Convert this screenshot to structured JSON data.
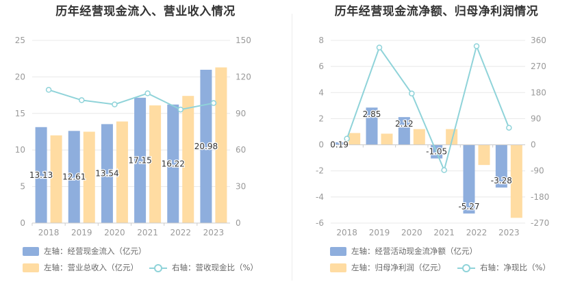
{
  "colors": {
    "blue": "#8eaedd",
    "orange": "#ffdca2",
    "teal": "#8fd3d9",
    "grid": "#e8e8e8",
    "axis": "#999999"
  },
  "chart_data": [
    {
      "type": "bar",
      "title": "历年经营现金流入、营业收入情况",
      "categories": [
        "2018",
        "2019",
        "2020",
        "2021",
        "2022",
        "2023"
      ],
      "left_axis": {
        "min": 0,
        "max": 25,
        "ticks": [
          "0",
          "5",
          "10",
          "15",
          "20",
          "25"
        ]
      },
      "right_axis": {
        "min": 0,
        "max": 150,
        "ticks": [
          "0",
          "30",
          "60",
          "90",
          "120",
          "150"
        ]
      },
      "series": [
        {
          "name": "左轴：经营现金流入（亿元）",
          "kind": "bar",
          "axis": "left",
          "values": [
            13.13,
            12.61,
            13.54,
            17.15,
            16.22,
            20.98
          ],
          "labels": [
            "13.13",
            "12.61",
            "13.54",
            "17.15",
            "16.22",
            "20.98"
          ]
        },
        {
          "name": "左轴：营业总收入（亿元）",
          "kind": "bar",
          "axis": "left",
          "values": [
            12.0,
            12.5,
            13.9,
            16.1,
            17.4,
            21.3
          ]
        },
        {
          "name": "右轴：营收现金比（%）",
          "kind": "line",
          "axis": "right",
          "values": [
            109.4,
            100.9,
            97.4,
            106.5,
            93.2,
            98.5
          ]
        }
      ]
    },
    {
      "type": "bar",
      "title": "历年经营现金流净额、归母净利润情况",
      "categories": [
        "2018",
        "2019",
        "2020",
        "2021",
        "2022",
        "2023"
      ],
      "left_axis": {
        "min": -6,
        "max": 8,
        "ticks": [
          "-6",
          "-4",
          "-2",
          "0",
          "2",
          "4",
          "6",
          "8"
        ]
      },
      "right_axis": {
        "min": -270,
        "max": 360,
        "ticks": [
          "-270",
          "-180",
          "-90",
          "0",
          "90",
          "180",
          "270",
          "360"
        ]
      },
      "series": [
        {
          "name": "左轴：经营活动现金流净额（亿元）",
          "kind": "bar",
          "axis": "left",
          "values": [
            0.19,
            2.85,
            2.12,
            -1.05,
            -5.27,
            -3.28
          ],
          "labels": [
            "0.19",
            "2.85",
            "2.12",
            "-1.05",
            "-5.27",
            "-3.28"
          ]
        },
        {
          "name": "左轴：归母净利润（亿元）",
          "kind": "bar",
          "axis": "left",
          "values": [
            0.9,
            0.85,
            1.2,
            1.2,
            -1.55,
            -5.6
          ]
        },
        {
          "name": "右轴：净现比（%）",
          "kind": "line",
          "axis": "right",
          "values": [
            21.1,
            335.3,
            176.7,
            -87.5,
            340.0,
            58.6
          ]
        }
      ]
    }
  ]
}
